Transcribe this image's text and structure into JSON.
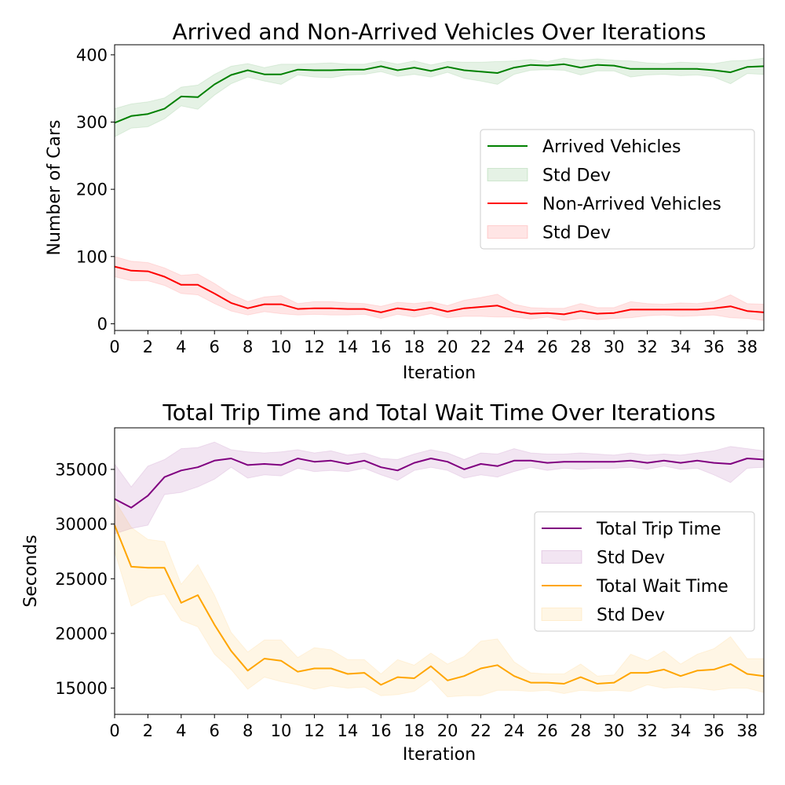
{
  "chart_data": [
    {
      "type": "line",
      "title": "Arrived and Non-Arrived Vehicles Over Iterations",
      "xlabel": "Iteration",
      "ylabel": "Number of Cars",
      "xlim": [
        0,
        39
      ],
      "ylim": [
        -10,
        415
      ],
      "xticks": [
        "0",
        "2",
        "4",
        "6",
        "8",
        "10",
        "12",
        "14",
        "16",
        "18",
        "20",
        "22",
        "24",
        "26",
        "28",
        "30",
        "32",
        "34",
        "36",
        "38"
      ],
      "yticks": [
        "0",
        "100",
        "200",
        "300",
        "400"
      ],
      "legend_position": "center-right",
      "legend": [
        "Arrived Vehicles",
        "Std Dev",
        "Non-Arrived Vehicles",
        "Std Dev"
      ],
      "x": [
        0,
        1,
        2,
        3,
        4,
        5,
        6,
        7,
        8,
        9,
        10,
        11,
        12,
        13,
        14,
        15,
        16,
        17,
        18,
        19,
        20,
        21,
        22,
        23,
        24,
        25,
        26,
        27,
        28,
        29,
        30,
        31,
        32,
        33,
        34,
        35,
        36,
        37,
        38,
        39
      ],
      "series": [
        {
          "name": "Arrived Vehicles",
          "std_label": "Std Dev",
          "color": "#008000",
          "values": [
            299,
            309,
            312,
            320,
            338,
            337,
            356,
            370,
            377,
            371,
            371,
            378,
            377,
            377,
            378,
            378,
            383,
            377,
            381,
            376,
            382,
            377,
            375,
            373,
            381,
            385,
            384,
            386,
            381,
            385,
            384,
            379,
            379,
            379,
            379,
            379,
            377,
            374,
            382,
            383
          ],
          "lower": [
            278,
            291,
            293,
            305,
            324,
            319,
            340,
            357,
            367,
            361,
            356,
            370,
            367,
            366,
            370,
            371,
            375,
            368,
            371,
            367,
            374,
            365,
            361,
            356,
            371,
            377,
            378,
            377,
            370,
            376,
            376,
            367,
            370,
            371,
            369,
            370,
            367,
            357,
            372,
            371
          ],
          "upper": [
            320,
            327,
            330,
            336,
            352,
            355,
            371,
            383,
            387,
            381,
            386,
            386,
            387,
            388,
            386,
            386,
            391,
            386,
            391,
            385,
            390,
            389,
            389,
            390,
            391,
            393,
            390,
            395,
            392,
            394,
            392,
            391,
            388,
            387,
            389,
            388,
            387,
            391,
            392,
            395
          ]
        },
        {
          "name": "Non-Arrived Vehicles",
          "std_label": "Std Dev",
          "color": "#ff0000",
          "values": [
            85,
            79,
            78,
            70,
            58,
            58,
            45,
            31,
            23,
            29,
            29,
            22,
            23,
            23,
            22,
            22,
            17,
            23,
            20,
            24,
            18,
            23,
            25,
            27,
            19,
            15,
            16,
            14,
            19,
            15,
            16,
            21,
            21,
            21,
            21,
            21,
            23,
            26,
            19,
            17
          ],
          "lower": [
            70,
            64,
            64,
            57,
            45,
            43,
            30,
            19,
            13,
            18,
            15,
            13,
            14,
            13,
            13,
            14,
            8,
            14,
            10,
            15,
            9,
            11,
            11,
            10,
            10,
            7,
            10,
            5,
            8,
            6,
            8,
            9,
            12,
            13,
            11,
            12,
            13,
            9,
            8,
            5
          ],
          "upper": [
            100,
            93,
            91,
            83,
            72,
            74,
            60,
            44,
            33,
            40,
            42,
            30,
            33,
            33,
            31,
            30,
            26,
            32,
            30,
            33,
            27,
            35,
            39,
            44,
            29,
            24,
            23,
            23,
            30,
            24,
            24,
            33,
            30,
            29,
            31,
            30,
            33,
            43,
            30,
            29
          ]
        }
      ]
    },
    {
      "type": "line",
      "title": "Total Trip Time and Total Wait Time Over Iterations",
      "xlabel": "Iteration",
      "ylabel": "Seconds",
      "xlim": [
        0,
        39
      ],
      "ylim": [
        12600,
        38800
      ],
      "xticks": [
        "0",
        "2",
        "4",
        "6",
        "8",
        "10",
        "12",
        "14",
        "16",
        "18",
        "20",
        "22",
        "24",
        "26",
        "28",
        "30",
        "32",
        "34",
        "36",
        "38"
      ],
      "yticks": [
        "15000",
        "20000",
        "25000",
        "30000",
        "35000"
      ],
      "legend_position": "center-right",
      "legend": [
        "Total Trip Time",
        "Std Dev",
        "Total Wait Time",
        "Std Dev"
      ],
      "x": [
        0,
        1,
        2,
        3,
        4,
        5,
        6,
        7,
        8,
        9,
        10,
        11,
        12,
        13,
        14,
        15,
        16,
        17,
        18,
        19,
        20,
        21,
        22,
        23,
        24,
        25,
        26,
        27,
        28,
        29,
        30,
        31,
        32,
        33,
        34,
        35,
        36,
        37,
        38,
        39
      ],
      "series": [
        {
          "name": "Total Trip Time",
          "std_label": "Std Dev",
          "color": "#800080",
          "values": [
            32300,
            31500,
            32600,
            34300,
            34900,
            35200,
            35800,
            36000,
            35400,
            35500,
            35400,
            36000,
            35700,
            35800,
            35500,
            35800,
            35200,
            34900,
            35600,
            36000,
            35700,
            35000,
            35500,
            35300,
            35800,
            35800,
            35600,
            35700,
            35700,
            35700,
            35700,
            35800,
            35600,
            35800,
            35600,
            35800,
            35600,
            35500,
            36000,
            35900
          ],
          "lower": [
            29100,
            29600,
            29900,
            32700,
            32900,
            33400,
            34100,
            35200,
            34200,
            34500,
            34400,
            35100,
            34800,
            34900,
            34800,
            35100,
            34500,
            34000,
            34900,
            35200,
            34900,
            34200,
            34500,
            34300,
            34800,
            35200,
            34900,
            35100,
            35000,
            35100,
            35100,
            35200,
            35000,
            35300,
            35000,
            35100,
            34500,
            33800,
            35100,
            35200
          ],
          "upper": [
            35500,
            33400,
            35300,
            35900,
            36900,
            37000,
            37500,
            36800,
            36600,
            36500,
            36600,
            36800,
            36500,
            36700,
            36300,
            36500,
            36000,
            35900,
            36400,
            36800,
            36500,
            35900,
            36500,
            36400,
            36900,
            36500,
            36400,
            36400,
            36500,
            36400,
            36300,
            36500,
            36300,
            36400,
            36300,
            36500,
            36700,
            37100,
            36900,
            36700
          ]
        },
        {
          "name": "Total Wait Time",
          "std_label": "Std Dev",
          "color": "#ffa500",
          "values": [
            29900,
            26100,
            26000,
            26000,
            22800,
            23500,
            20800,
            18400,
            16600,
            17700,
            17500,
            16500,
            16800,
            16800,
            16300,
            16400,
            15300,
            16000,
            15900,
            17000,
            15700,
            16100,
            16800,
            17100,
            16100,
            15500,
            15500,
            15400,
            16000,
            15400,
            15500,
            16400,
            16400,
            16700,
            16100,
            16600,
            16700,
            17200,
            16300,
            16100
          ],
          "lower": [
            27500,
            22500,
            23300,
            23600,
            21200,
            20600,
            18100,
            16700,
            14900,
            16000,
            15600,
            15300,
            14900,
            15200,
            15000,
            15100,
            14300,
            14400,
            14700,
            15800,
            14200,
            14300,
            14300,
            14800,
            14800,
            14700,
            14800,
            14500,
            14800,
            14700,
            14800,
            14700,
            15300,
            15000,
            15100,
            15000,
            14800,
            15000,
            15000,
            14600
          ],
          "upper": [
            32200,
            29700,
            28600,
            28400,
            24500,
            26300,
            23500,
            20100,
            18300,
            19400,
            19400,
            17800,
            18700,
            18500,
            17600,
            17600,
            16300,
            17600,
            17100,
            18200,
            17200,
            17900,
            19300,
            19500,
            17400,
            16400,
            16300,
            16300,
            17200,
            16100,
            16200,
            18100,
            17500,
            18400,
            17200,
            18100,
            18600,
            19700,
            17700,
            17700
          ]
        }
      ]
    }
  ]
}
